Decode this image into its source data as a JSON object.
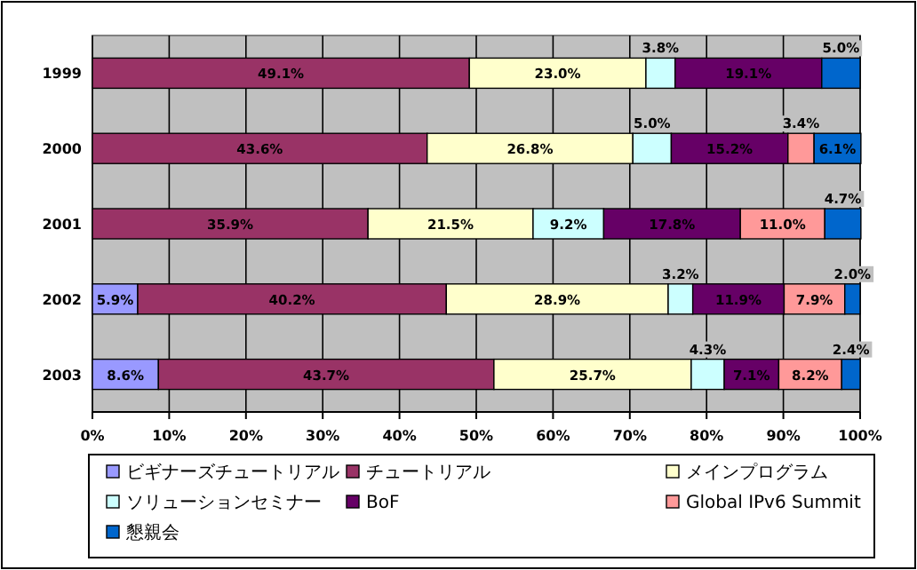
{
  "chart_data": {
    "type": "bar",
    "orientation": "horizontal",
    "stacked": true,
    "categories": [
      "1999",
      "2000",
      "2001",
      "2002",
      "2003"
    ],
    "series": [
      {
        "name": "ビギナーズチュートリアル",
        "color": "#9999ff",
        "values": [
          null,
          null,
          null,
          5.9,
          8.6
        ],
        "value_labels": [
          null,
          null,
          null,
          "5.9%",
          "8.6%"
        ]
      },
      {
        "name": "チュートリアル",
        "color": "#993366",
        "values": [
          49.1,
          43.6,
          35.9,
          40.2,
          43.7
        ],
        "value_labels": [
          "49.1%",
          "43.6%",
          "35.9%",
          "40.2%",
          "43.7%"
        ]
      },
      {
        "name": "メインプログラム",
        "color": "#ffffcc",
        "values": [
          23.0,
          26.8,
          21.5,
          28.9,
          25.7
        ],
        "value_labels": [
          "23.0%",
          "26.8%",
          "21.5%",
          "28.9%",
          "25.7%"
        ]
      },
      {
        "name": "ソリューションセミナー",
        "color": "#ccffff",
        "values": [
          3.8,
          5.0,
          9.2,
          3.2,
          4.3
        ],
        "value_labels": [
          "3.8%",
          "5.0%",
          "9.2%",
          "3.2%",
          "4.3%"
        ]
      },
      {
        "name": "BoF",
        "color": "#660066",
        "values": [
          19.1,
          15.2,
          17.8,
          11.9,
          7.1
        ],
        "value_labels": [
          "19.1%",
          "15.2%",
          "17.8%",
          "11.9%",
          "7.1%"
        ]
      },
      {
        "name": "Global IPv6 Summit",
        "color": "#ff9999",
        "values": [
          null,
          3.4,
          11.0,
          7.9,
          8.2
        ],
        "value_labels": [
          null,
          "3.4%",
          "11.0%",
          "7.9%",
          "8.2%"
        ]
      },
      {
        "name": "懇親会",
        "color": "#0066cc",
        "values": [
          5.0,
          6.1,
          4.7,
          2.0,
          2.4
        ],
        "value_labels": [
          "5.0%",
          "6.1%",
          "4.7%",
          "2.0%",
          "2.4%"
        ]
      }
    ],
    "xlim": [
      0,
      100
    ],
    "xticks": [
      {
        "value": 0,
        "label": "0%"
      },
      {
        "value": 10,
        "label": "10%"
      },
      {
        "value": 20,
        "label": "20%"
      },
      {
        "value": 30,
        "label": "30%"
      },
      {
        "value": 40,
        "label": "40%"
      },
      {
        "value": 50,
        "label": "50%"
      },
      {
        "value": 60,
        "label": "60%"
      },
      {
        "value": 70,
        "label": "70%"
      },
      {
        "value": 80,
        "label": "80%"
      },
      {
        "value": 90,
        "label": "90%"
      },
      {
        "value": 100,
        "label": "100%"
      }
    ],
    "grid": "x",
    "legend": "bottom"
  }
}
